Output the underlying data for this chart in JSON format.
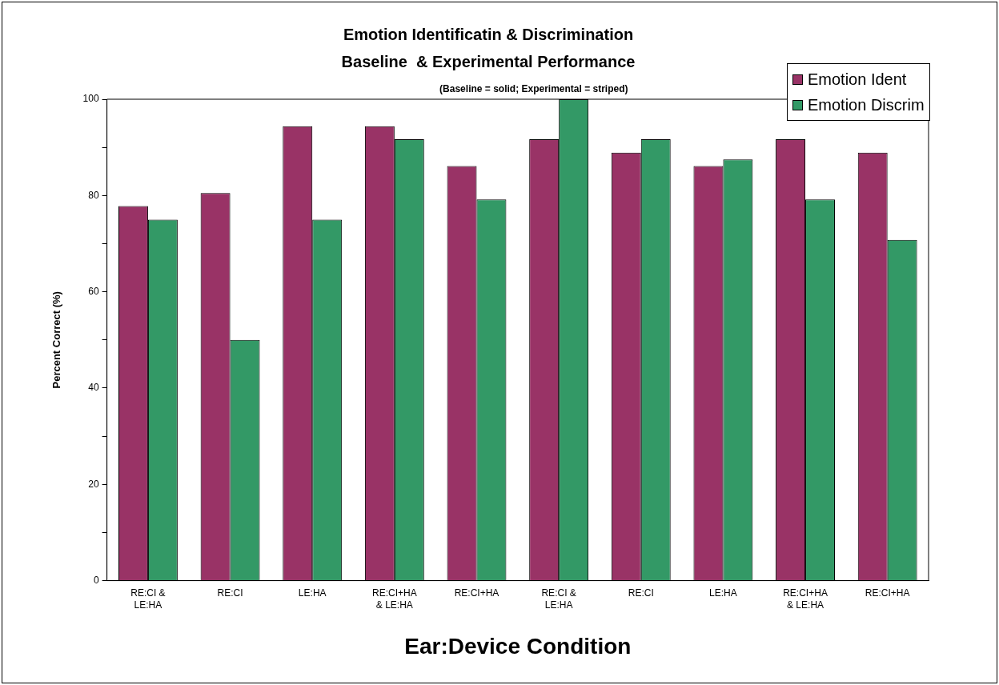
{
  "chart_data": {
    "type": "bar",
    "title": "Emotion Identificatin & Discrimination",
    "subtitle": "Baseline  & Experimental Performance",
    "annotations": [
      "(Baseline = solid; Experimental = striped)"
    ],
    "xlabel": "Ear:Device Condition",
    "ylabel": "Percent Correct (%)",
    "categories": [
      "RE:CI & LE:HA",
      "RE:CI",
      "LE:HA",
      "RE:CI+HA & LE:HA",
      "RE:CI+HA",
      "RE:CI & LE:HA",
      "RE:CI",
      "LE:HA",
      "RE:CI+HA & LE:HA",
      "RE:CI+HA"
    ],
    "series": [
      {
        "name": "Emotion Ident",
        "color": "#993366",
        "values": [
          77.8,
          80.5,
          94.4,
          94.4,
          86.1,
          91.7,
          88.9,
          86.1,
          91.7,
          88.9
        ]
      },
      {
        "name": "Emotion Discrim",
        "color": "#339966",
        "values": [
          75,
          50,
          75,
          91.7,
          79.2,
          100,
          91.7,
          87.5,
          79.2,
          70.8
        ]
      }
    ],
    "ylim": [
      0,
      100
    ],
    "yticks": [
      0,
      {
        "value": 10,
        "label": null
      },
      20,
      {
        "value": 30,
        "label": null
      },
      40,
      {
        "value": 50,
        "label": null
      },
      60,
      {
        "value": 70,
        "label": null
      },
      80,
      {
        "value": 90,
        "label": null
      },
      100
    ],
    "grid": false,
    "legend": "top right"
  }
}
